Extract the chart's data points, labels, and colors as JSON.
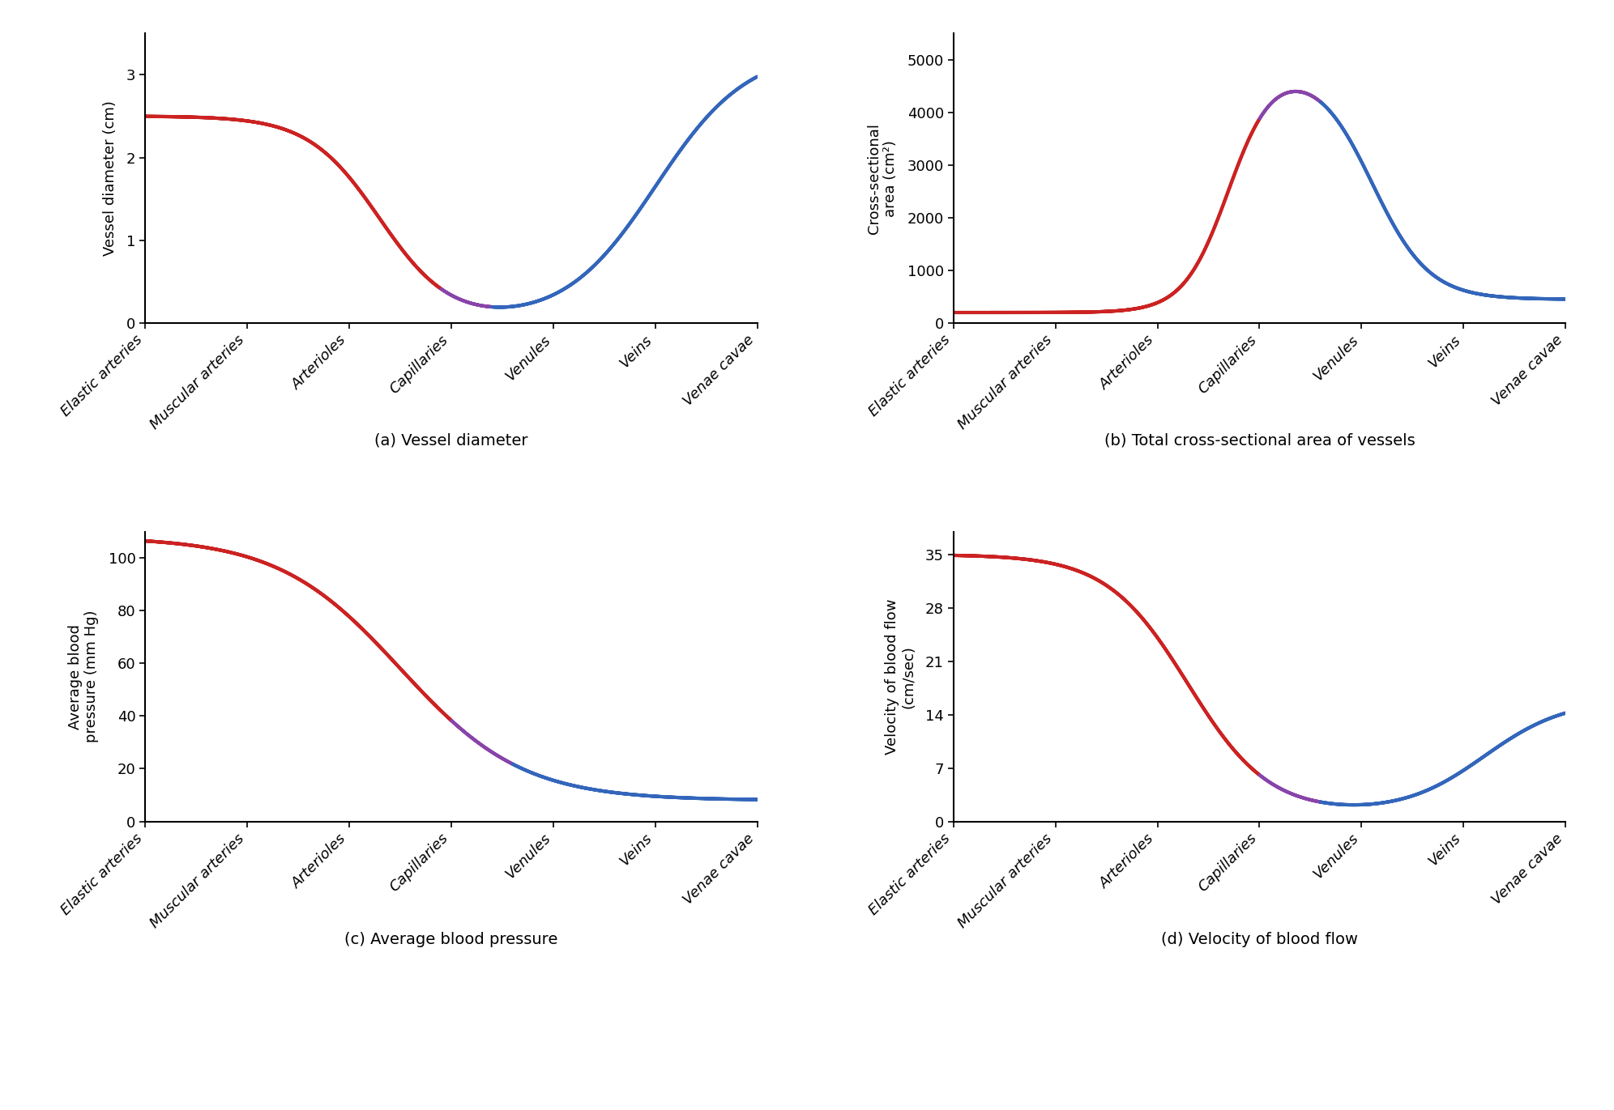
{
  "categories": [
    "Elastic arteries",
    "Muscular arteries",
    "Arterioles",
    "Capillaries",
    "Venules",
    "Veins",
    "Venae cavae"
  ],
  "red_color": "#CC2222",
  "blue_color": "#3366BB",
  "purple_color": "#8844AA",
  "background_color": "#FFFFFF",
  "subplot_titles": [
    "(a) Vessel diameter",
    "(b) Total cross-sectional area of vessels",
    "(c) Average blood pressure",
    "(d) Velocity of blood flow"
  ],
  "ylabels": [
    "Vessel diameter (cm)",
    "Cross-sectional\narea (cm²)",
    "Average blood\npressure (mm Hg)",
    "Velocity of blood flow\n(cm/sec)"
  ],
  "yticks_a": [
    0,
    1,
    2,
    3
  ],
  "yticks_b": [
    0,
    1000,
    2000,
    3000,
    4000,
    5000
  ],
  "yticks_c": [
    0,
    20,
    40,
    60,
    80,
    100
  ],
  "yticks_d": [
    0,
    7,
    14,
    21,
    28,
    35
  ],
  "line_width": 3.0
}
